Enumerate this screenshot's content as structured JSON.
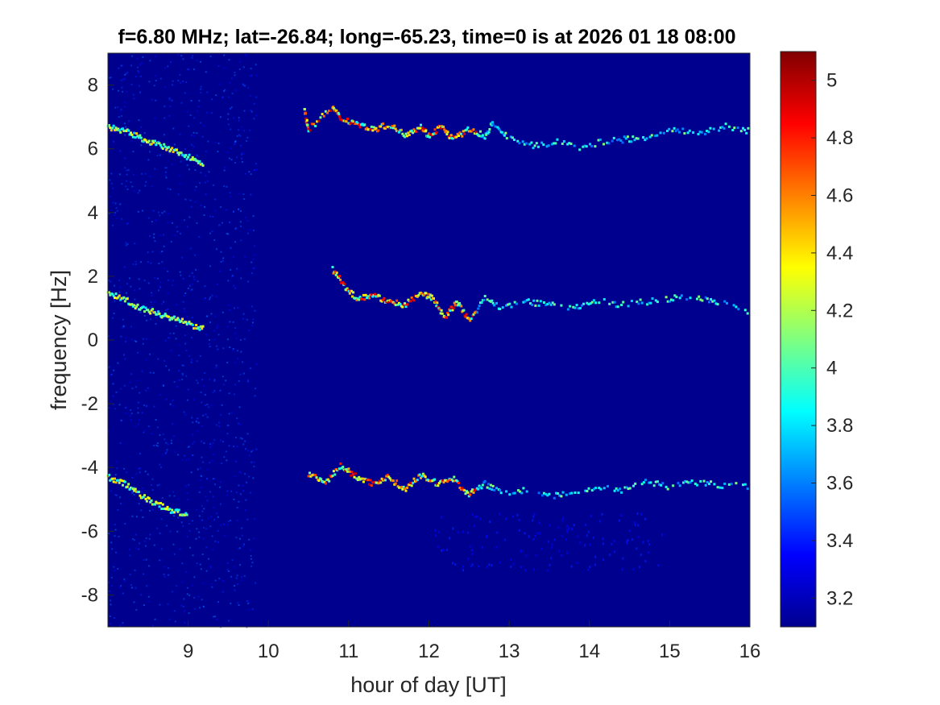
{
  "chart_data": {
    "type": "heatmap",
    "title": "f=6.80 MHz;  lat=-26.84; long=-65.23, time=0 is at 2026 01 18 08:00",
    "xlabel": "hour of day [UT]",
    "ylabel": "frequency [Hz]",
    "xlim": [
      8,
      16
    ],
    "ylim": [
      -9,
      9
    ],
    "x_ticks": [
      "9",
      "10",
      "11",
      "12",
      "13",
      "14",
      "15",
      "16"
    ],
    "y_ticks": [
      "-8",
      "-6",
      "-4",
      "-2",
      "0",
      "2",
      "4",
      "6",
      "8"
    ],
    "colormap": "jet",
    "color_range": [
      3.1,
      5.1
    ],
    "colorbar_ticks": [
      "3.2",
      "3.4",
      "3.6",
      "3.8",
      "4",
      "4.2",
      "4.4",
      "4.6",
      "4.8",
      "5"
    ],
    "background_color": "#00008f",
    "traces": [
      {
        "band": "upper",
        "points": [
          [
            8.0,
            6.7
          ],
          [
            8.2,
            6.55
          ],
          [
            8.4,
            6.35
          ],
          [
            8.6,
            6.15
          ],
          [
            8.8,
            5.95
          ],
          [
            9.0,
            5.75
          ],
          [
            9.2,
            5.55
          ],
          [
            10.45,
            7.2
          ],
          [
            10.5,
            6.6
          ],
          [
            10.8,
            7.3
          ],
          [
            10.9,
            6.95
          ],
          [
            11.1,
            6.8
          ],
          [
            11.3,
            6.6
          ],
          [
            11.5,
            6.75
          ],
          [
            11.7,
            6.45
          ],
          [
            11.9,
            6.7
          ],
          [
            12.0,
            6.4
          ],
          [
            12.15,
            6.7
          ],
          [
            12.3,
            6.3
          ],
          [
            12.5,
            6.6
          ],
          [
            12.7,
            6.4
          ],
          [
            12.8,
            6.8
          ],
          [
            13.0,
            6.3
          ],
          [
            13.3,
            6.1
          ],
          [
            13.6,
            6.2
          ],
          [
            13.9,
            6.0
          ],
          [
            14.2,
            6.25
          ],
          [
            14.5,
            6.3
          ],
          [
            14.8,
            6.4
          ],
          [
            15.1,
            6.6
          ],
          [
            15.4,
            6.5
          ],
          [
            15.7,
            6.7
          ],
          [
            16.0,
            6.55
          ]
        ]
      },
      {
        "band": "middle",
        "points": [
          [
            8.0,
            1.45
          ],
          [
            8.2,
            1.3
          ],
          [
            8.4,
            1.0
          ],
          [
            8.6,
            0.85
          ],
          [
            8.8,
            0.7
          ],
          [
            9.0,
            0.5
          ],
          [
            9.2,
            0.35
          ],
          [
            10.8,
            2.2
          ],
          [
            10.95,
            1.7
          ],
          [
            11.1,
            1.3
          ],
          [
            11.3,
            1.4
          ],
          [
            11.5,
            1.2
          ],
          [
            11.7,
            1.1
          ],
          [
            11.9,
            1.5
          ],
          [
            12.05,
            1.3
          ],
          [
            12.2,
            0.7
          ],
          [
            12.35,
            1.2
          ],
          [
            12.5,
            0.6
          ],
          [
            12.7,
            1.3
          ],
          [
            12.9,
            1.0
          ],
          [
            13.2,
            1.2
          ],
          [
            13.5,
            1.1
          ],
          [
            13.8,
            1.0
          ],
          [
            14.1,
            1.25
          ],
          [
            14.4,
            1.1
          ],
          [
            14.7,
            1.2
          ],
          [
            15.0,
            1.3
          ],
          [
            15.3,
            1.35
          ],
          [
            15.6,
            1.2
          ],
          [
            16.0,
            0.9
          ]
        ]
      },
      {
        "band": "lower",
        "points": [
          [
            8.0,
            -4.3
          ],
          [
            8.2,
            -4.5
          ],
          [
            8.4,
            -4.85
          ],
          [
            8.6,
            -5.15
          ],
          [
            8.8,
            -5.35
          ],
          [
            9.0,
            -5.5
          ],
          [
            10.5,
            -4.2
          ],
          [
            10.7,
            -4.5
          ],
          [
            10.9,
            -3.95
          ],
          [
            11.1,
            -4.3
          ],
          [
            11.3,
            -4.5
          ],
          [
            11.5,
            -4.3
          ],
          [
            11.7,
            -4.7
          ],
          [
            11.9,
            -4.25
          ],
          [
            12.1,
            -4.5
          ],
          [
            12.3,
            -4.35
          ],
          [
            12.5,
            -4.85
          ],
          [
            12.7,
            -4.5
          ],
          [
            12.9,
            -4.8
          ],
          [
            13.2,
            -4.7
          ],
          [
            13.5,
            -4.9
          ],
          [
            13.8,
            -4.8
          ],
          [
            14.1,
            -4.6
          ],
          [
            14.4,
            -4.75
          ],
          [
            14.7,
            -4.45
          ],
          [
            15.0,
            -4.6
          ],
          [
            15.3,
            -4.45
          ],
          [
            15.6,
            -4.55
          ],
          [
            16.0,
            -4.6
          ]
        ]
      }
    ]
  }
}
